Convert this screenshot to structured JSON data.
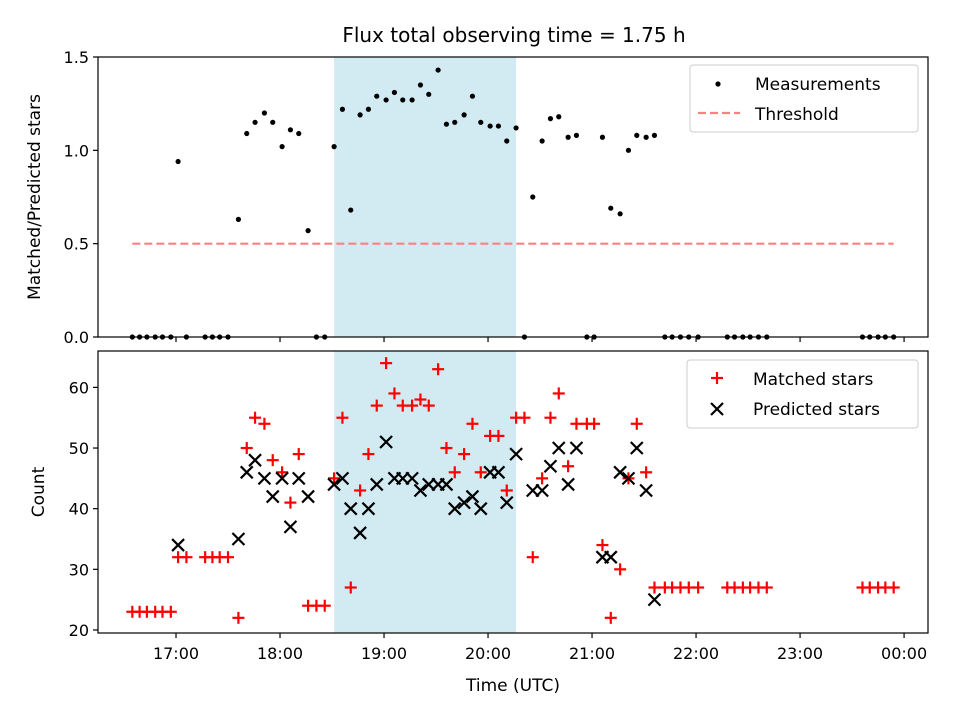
{
  "chart_data": [
    {
      "type": "scatter",
      "title": "Flux total observing time = 1.75 h",
      "xlabel": "",
      "ylabel": "Matched/Predicted stars",
      "ylim": [
        0,
        1.5
      ],
      "yticks": [
        "0.0",
        "0.5",
        "1.0",
        "1.5"
      ],
      "xlim": [
        16.25,
        24.23
      ],
      "highlight_span": {
        "x": [
          18.52,
          20.27
        ],
        "color": "#add8e6"
      },
      "legend": {
        "position": "top-right"
      },
      "series": [
        {
          "name": "Measurements",
          "marker": "dot",
          "color": "#000000",
          "points": [
            [
              16.58,
              0
            ],
            [
              16.65,
              0
            ],
            [
              16.72,
              0
            ],
            [
              16.8,
              0
            ],
            [
              16.87,
              0
            ],
            [
              16.95,
              0
            ],
            [
              17.02,
              0.94
            ],
            [
              17.1,
              0
            ],
            [
              17.28,
              0
            ],
            [
              17.35,
              0
            ],
            [
              17.42,
              0
            ],
            [
              17.5,
              0
            ],
            [
              17.6,
              0.63
            ],
            [
              17.68,
              1.09
            ],
            [
              17.76,
              1.15
            ],
            [
              17.85,
              1.2
            ],
            [
              17.93,
              1.15
            ],
            [
              18.02,
              1.02
            ],
            [
              18.1,
              1.11
            ],
            [
              18.18,
              1.09
            ],
            [
              18.27,
              0.57
            ],
            [
              18.35,
              0
            ],
            [
              18.43,
              0
            ],
            [
              18.52,
              1.02
            ],
            [
              18.6,
              1.22
            ],
            [
              18.68,
              0.68
            ],
            [
              18.77,
              1.19
            ],
            [
              18.85,
              1.22
            ],
            [
              18.93,
              1.29
            ],
            [
              19.02,
              1.27
            ],
            [
              19.1,
              1.31
            ],
            [
              19.18,
              1.27
            ],
            [
              19.27,
              1.27
            ],
            [
              19.35,
              1.35
            ],
            [
              19.43,
              1.3
            ],
            [
              19.52,
              1.43
            ],
            [
              19.6,
              1.14
            ],
            [
              19.68,
              1.15
            ],
            [
              19.77,
              1.19
            ],
            [
              19.85,
              1.29
            ],
            [
              19.93,
              1.15
            ],
            [
              20.02,
              1.13
            ],
            [
              20.1,
              1.13
            ],
            [
              20.18,
              1.05
            ],
            [
              20.27,
              1.12
            ],
            [
              20.35,
              0
            ],
            [
              20.43,
              0.75
            ],
            [
              20.52,
              1.05
            ],
            [
              20.6,
              1.17
            ],
            [
              20.68,
              1.18
            ],
            [
              20.77,
              1.07
            ],
            [
              20.85,
              1.08
            ],
            [
              20.95,
              0
            ],
            [
              21.02,
              0
            ],
            [
              21.1,
              1.07
            ],
            [
              21.18,
              0.69
            ],
            [
              21.27,
              0.66
            ],
            [
              21.35,
              1.0
            ],
            [
              21.43,
              1.08
            ],
            [
              21.52,
              1.07
            ],
            [
              21.6,
              1.08
            ],
            [
              21.7,
              0
            ],
            [
              21.77,
              0
            ],
            [
              21.85,
              0
            ],
            [
              21.93,
              0
            ],
            [
              22.02,
              0
            ],
            [
              22.3,
              0
            ],
            [
              22.37,
              0
            ],
            [
              22.45,
              0
            ],
            [
              22.52,
              0
            ],
            [
              22.6,
              0
            ],
            [
              22.68,
              0
            ],
            [
              23.6,
              0
            ],
            [
              23.67,
              0
            ],
            [
              23.75,
              0
            ],
            [
              23.82,
              0
            ],
            [
              23.9,
              0
            ]
          ]
        },
        {
          "name": "Threshold",
          "marker": "dashed-line",
          "color": "#ff8080",
          "points": [
            [
              16.58,
              0.5
            ],
            [
              23.9,
              0.5
            ]
          ]
        }
      ]
    },
    {
      "type": "scatter",
      "xlabel": "Time (UTC)",
      "ylabel": "Count",
      "ylim": [
        19.5,
        66
      ],
      "yticks": [
        "20",
        "30",
        "40",
        "50",
        "60"
      ],
      "xlim": [
        16.25,
        24.23
      ],
      "xticks": [
        {
          "v": 17,
          "label": "17:00"
        },
        {
          "v": 18,
          "label": "18:00"
        },
        {
          "v": 19,
          "label": "19:00"
        },
        {
          "v": 20,
          "label": "20:00"
        },
        {
          "v": 21,
          "label": "21:00"
        },
        {
          "v": 22,
          "label": "22:00"
        },
        {
          "v": 23,
          "label": "23:00"
        },
        {
          "v": 24,
          "label": "00:00"
        }
      ],
      "highlight_span": {
        "x": [
          18.52,
          20.27
        ],
        "color": "#add8e6"
      },
      "legend": {
        "position": "top-right"
      },
      "series": [
        {
          "name": "Matched stars",
          "marker": "plus",
          "color": "#ff0000",
          "points": [
            [
              16.58,
              23
            ],
            [
              16.65,
              23
            ],
            [
              16.72,
              23
            ],
            [
              16.8,
              23
            ],
            [
              16.87,
              23
            ],
            [
              16.95,
              23
            ],
            [
              17.02,
              32
            ],
            [
              17.1,
              32
            ],
            [
              17.28,
              32
            ],
            [
              17.35,
              32
            ],
            [
              17.42,
              32
            ],
            [
              17.5,
              32
            ],
            [
              17.6,
              22
            ],
            [
              17.68,
              50
            ],
            [
              17.76,
              55
            ],
            [
              17.85,
              54
            ],
            [
              17.93,
              48
            ],
            [
              18.02,
              46
            ],
            [
              18.1,
              41
            ],
            [
              18.18,
              49
            ],
            [
              18.27,
              24
            ],
            [
              18.35,
              24
            ],
            [
              18.43,
              24
            ],
            [
              18.52,
              45
            ],
            [
              18.6,
              55
            ],
            [
              18.68,
              27
            ],
            [
              18.77,
              43
            ],
            [
              18.85,
              49
            ],
            [
              18.93,
              57
            ],
            [
              19.02,
              64
            ],
            [
              19.1,
              59
            ],
            [
              19.18,
              57
            ],
            [
              19.27,
              57
            ],
            [
              19.35,
              58
            ],
            [
              19.43,
              57
            ],
            [
              19.52,
              63
            ],
            [
              19.6,
              50
            ],
            [
              19.68,
              46
            ],
            [
              19.77,
              49
            ],
            [
              19.85,
              54
            ],
            [
              19.93,
              46
            ],
            [
              20.02,
              52
            ],
            [
              20.1,
              52
            ],
            [
              20.18,
              43
            ],
            [
              20.27,
              55
            ],
            [
              20.35,
              55
            ],
            [
              20.43,
              32
            ],
            [
              20.52,
              45
            ],
            [
              20.6,
              55
            ],
            [
              20.68,
              59
            ],
            [
              20.77,
              47
            ],
            [
              20.85,
              54
            ],
            [
              20.95,
              54
            ],
            [
              21.02,
              54
            ],
            [
              21.1,
              34
            ],
            [
              21.18,
              22
            ],
            [
              21.27,
              30
            ],
            [
              21.35,
              45
            ],
            [
              21.43,
              54
            ],
            [
              21.52,
              46
            ],
            [
              21.6,
              27
            ],
            [
              21.7,
              27
            ],
            [
              21.77,
              27
            ],
            [
              21.85,
              27
            ],
            [
              21.93,
              27
            ],
            [
              22.02,
              27
            ],
            [
              22.3,
              27
            ],
            [
              22.37,
              27
            ],
            [
              22.45,
              27
            ],
            [
              22.52,
              27
            ],
            [
              22.6,
              27
            ],
            [
              22.68,
              27
            ],
            [
              23.6,
              27
            ],
            [
              23.67,
              27
            ],
            [
              23.75,
              27
            ],
            [
              23.82,
              27
            ],
            [
              23.9,
              27
            ]
          ]
        },
        {
          "name": "Predicted stars",
          "marker": "x",
          "color": "#000000",
          "points": [
            [
              17.02,
              34
            ],
            [
              17.6,
              35
            ],
            [
              17.68,
              46
            ],
            [
              17.76,
              48
            ],
            [
              17.85,
              45
            ],
            [
              17.93,
              42
            ],
            [
              18.02,
              45
            ],
            [
              18.1,
              37
            ],
            [
              18.18,
              45
            ],
            [
              18.27,
              42
            ],
            [
              18.52,
              44
            ],
            [
              18.6,
              45
            ],
            [
              18.68,
              40
            ],
            [
              18.77,
              36
            ],
            [
              18.85,
              40
            ],
            [
              18.93,
              44
            ],
            [
              19.02,
              51
            ],
            [
              19.1,
              45
            ],
            [
              19.18,
              45
            ],
            [
              19.27,
              45
            ],
            [
              19.35,
              43
            ],
            [
              19.43,
              44
            ],
            [
              19.52,
              44
            ],
            [
              19.6,
              44
            ],
            [
              19.68,
              40
            ],
            [
              19.77,
              41
            ],
            [
              19.85,
              42
            ],
            [
              19.93,
              40
            ],
            [
              20.02,
              46
            ],
            [
              20.1,
              46
            ],
            [
              20.18,
              41
            ],
            [
              20.27,
              49
            ],
            [
              20.43,
              43
            ],
            [
              20.52,
              43
            ],
            [
              20.6,
              47
            ],
            [
              20.68,
              50
            ],
            [
              20.77,
              44
            ],
            [
              20.85,
              50
            ],
            [
              21.1,
              32
            ],
            [
              21.18,
              32
            ],
            [
              21.27,
              46
            ],
            [
              21.35,
              45
            ],
            [
              21.43,
              50
            ],
            [
              21.52,
              43
            ],
            [
              21.6,
              25
            ]
          ]
        }
      ]
    }
  ]
}
